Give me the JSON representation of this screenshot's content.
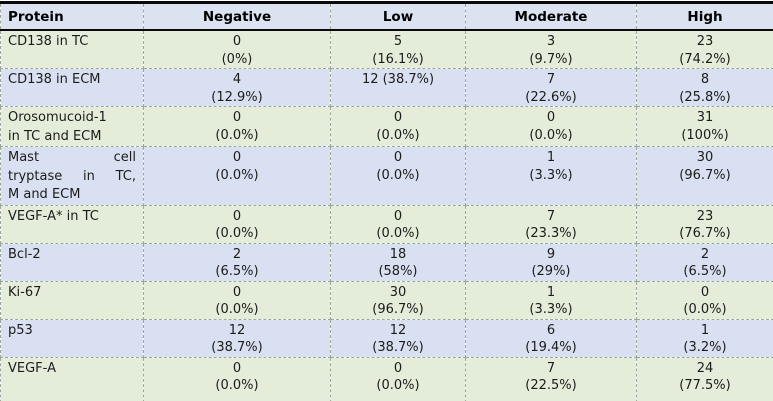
{
  "table": {
    "columns": [
      "Protein",
      "Negative",
      "Low",
      "Moderate",
      "High"
    ],
    "rows": [
      {
        "protein": [
          "CD138 in TC"
        ],
        "c": [
          [
            "0",
            "(0%)"
          ],
          [
            "5",
            "(16.1%)"
          ],
          [
            "3",
            "(9.7%)"
          ],
          [
            "23",
            "(74.2%)"
          ]
        ]
      },
      {
        "protein": [
          "CD138 in ECM"
        ],
        "c": [
          [
            "4",
            "(12.9%)"
          ],
          [
            "12 (38.7%)"
          ],
          [
            "7",
            "(22.6%)"
          ],
          [
            "8",
            "(25.8%)"
          ]
        ]
      },
      {
        "protein": [
          "Orosomucoid-1",
          "in TC and ECM"
        ],
        "c": [
          [
            "0",
            "(0.0%)"
          ],
          [
            "0",
            "(0.0%)"
          ],
          [
            "0",
            "(0.0%)"
          ],
          [
            "31",
            "(100%)"
          ]
        ]
      },
      {
        "protein": [
          "Mast cell",
          "tryptase in TC,",
          "M and ECM"
        ],
        "c": [
          [
            "0",
            "(0.0%)"
          ],
          [
            "0",
            "(0.0%)"
          ],
          [
            "1",
            "(3.3%)"
          ],
          [
            "30",
            "(96.7%)"
          ]
        ]
      },
      {
        "protein": [
          "VEGF-A* in TC"
        ],
        "c": [
          [
            "0",
            "(0.0%)"
          ],
          [
            "0",
            "(0.0%)"
          ],
          [
            "7",
            "(23.3%)"
          ],
          [
            "23",
            "(76.7%)"
          ]
        ]
      },
      {
        "protein": [
          "Bcl-2"
        ],
        "c": [
          [
            "2",
            "(6.5%)"
          ],
          [
            "18",
            "(58%)"
          ],
          [
            "9",
            "(29%)"
          ],
          [
            "2",
            "(6.5%)"
          ]
        ]
      },
      {
        "protein": [
          "Ki-67"
        ],
        "c": [
          [
            "0",
            "(0.0%)"
          ],
          [
            "30",
            "(96.7%)"
          ],
          [
            "1",
            "(3.3%)"
          ],
          [
            "0",
            "(0.0%)"
          ]
        ]
      },
      {
        "protein": [
          "p53"
        ],
        "c": [
          [
            "12",
            "(38.7%)"
          ],
          [
            "12",
            "(38.7%)"
          ],
          [
            "6",
            "(19.4%)"
          ],
          [
            "1",
            "(3.2%)"
          ]
        ]
      },
      {
        "protein": [
          "VEGF-A"
        ],
        "c": [
          [
            "0",
            "(0.0%)"
          ],
          [
            "0",
            "(0.0%)"
          ],
          [
            "7",
            "(22.5%)"
          ],
          [
            "24",
            "(77.5%)"
          ]
        ]
      }
    ]
  },
  "colors": {
    "row-green": "#e4edda",
    "row-blue": "#d9e0f1",
    "header-bg": "#dbe2f0",
    "border-dashed": "#9aa89a",
    "border-dark": "#0a0a0a"
  }
}
